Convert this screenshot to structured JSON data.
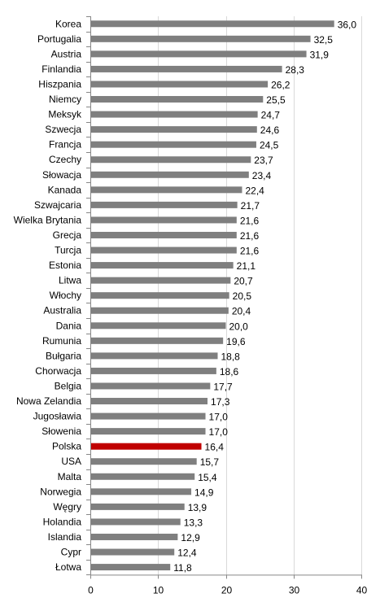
{
  "chart_data": {
    "type": "bar",
    "orientation": "horizontal",
    "categories": [
      "Korea",
      "Portugalia",
      "Austria",
      "Finlandia",
      "Hiszpania",
      "Niemcy",
      "Meksyk",
      "Szwecja",
      "Francja",
      "Czechy",
      "Słowacja",
      "Kanada",
      "Szwajcaria",
      "Wielka Brytania",
      "Grecja",
      "Turcja",
      "Estonia",
      "Litwa",
      "Włochy",
      "Australia",
      "Dania",
      "Rumunia",
      "Bułgaria",
      "Chorwacja",
      "Belgia",
      "Nowa Zelandia",
      "Jugosławia",
      "Słowenia",
      "Polska",
      "USA",
      "Malta",
      "Norwegia",
      "Węgry",
      "Holandia",
      "Islandia",
      "Cypr",
      "Łotwa"
    ],
    "values": [
      36.0,
      32.5,
      31.9,
      28.3,
      26.2,
      25.5,
      24.7,
      24.6,
      24.5,
      23.7,
      23.4,
      22.4,
      21.7,
      21.6,
      21.6,
      21.6,
      21.1,
      20.7,
      20.5,
      20.4,
      20.0,
      19.6,
      18.8,
      18.6,
      17.7,
      17.3,
      17.0,
      17.0,
      16.4,
      15.7,
      15.4,
      14.9,
      13.9,
      13.3,
      12.9,
      12.4,
      11.8
    ],
    "value_labels": [
      "36,0",
      "32,5",
      "31,9",
      "28,3",
      "26,2",
      "25,5",
      "24,7",
      "24,6",
      "24,5",
      "23,7",
      "23,4",
      "22,4",
      "21,7",
      "21,6",
      "21,6",
      "21,6",
      "21,1",
      "20,7",
      "20,5",
      "20,4",
      "20,0",
      "19,6",
      "18,8",
      "18,6",
      "17,7",
      "17,3",
      "17,0",
      "17,0",
      "16,4",
      "15,7",
      "15,4",
      "14,9",
      "13,9",
      "13,3",
      "12,9",
      "12,4",
      "11,8"
    ],
    "highlight_category": "Polska",
    "xlim": [
      0,
      40
    ],
    "x_ticks": [
      0,
      10,
      20,
      30,
      40
    ],
    "x_tick_labels": [
      "0",
      "10",
      "20",
      "30",
      "40"
    ],
    "grid": "vertical",
    "legend": "none",
    "title": "",
    "xlabel": "",
    "ylabel": ""
  },
  "colors": {
    "bar": "#7f7f7f",
    "highlight_bar": "#c00000",
    "grid": "#d9d9d9",
    "axis": "#868686",
    "text": "#000000",
    "background": "#ffffff"
  }
}
